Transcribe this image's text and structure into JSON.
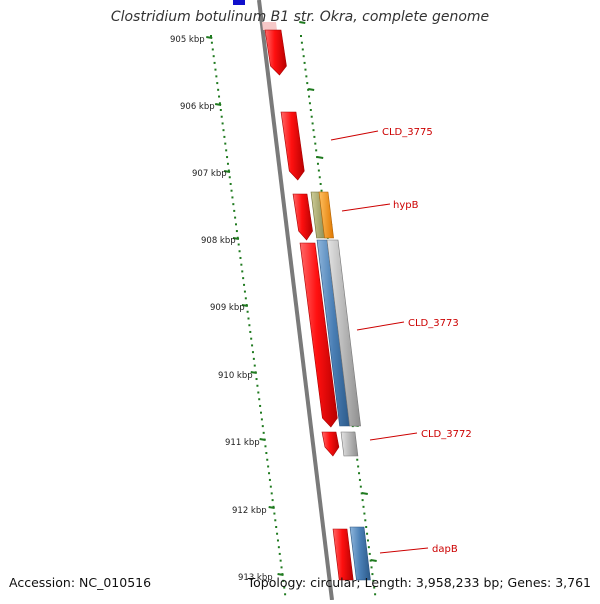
{
  "title": "Clostridium botulinum B1 str. Okra, complete genome",
  "footer": {
    "accession": "Accession: NC_010516",
    "summary": "Topology: circular; Length: 3,958,233 bp; Genes: 3,761"
  },
  "colors": {
    "backbone": "#7a7a7a",
    "tick": "#1f7a1f",
    "cds": "#ee1111",
    "gene": "#4a7fb5",
    "protein": "#b0b0b0",
    "trna": "#9a9a60",
    "orange": "#f28c00",
    "label": "#cc0000",
    "top_marker": "#1010cc"
  },
  "scale": {
    "ticks": [
      "905 kbp",
      "906 kbp",
      "907 kbp",
      "908 kbp",
      "909 kbp",
      "910 kbp",
      "911 kbp",
      "912 kbp",
      "913 kbp"
    ]
  },
  "gene_labels": [
    "CLD_3775",
    "hypB",
    "CLD_3773",
    "CLD_3772",
    "dapB"
  ]
}
